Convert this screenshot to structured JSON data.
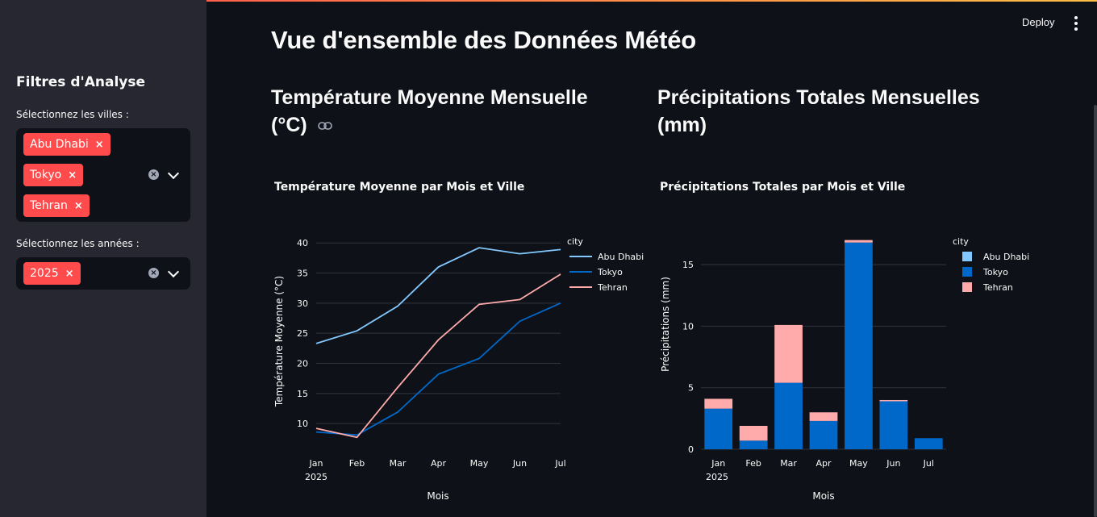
{
  "sidebar": {
    "title": "Filtres d'Analyse",
    "cities_label": "Sélectionnez les villes :",
    "cities": [
      "Abu Dhabi",
      "Tokyo",
      "Tehran"
    ],
    "years_label": "Sélectionnez les années :",
    "years": [
      "2025"
    ],
    "remove_glyph": "×",
    "clear_glyph": "×"
  },
  "header": {
    "deploy_label": "Deploy"
  },
  "main": {
    "title": "Vue d'ensemble des Données Météo",
    "left_section_line1": "Température Moyenne Mensuelle",
    "left_section_line2": "(°C)",
    "right_section_line1": "Précipitations Totales Mensuelles",
    "right_section_line2": "(mm)"
  },
  "colors": {
    "Abu Dhabi": "#83c9ff",
    "Tokyo": "#0068c9",
    "Tehran": "#ffabab",
    "accent": "#ff4b4b"
  },
  "chart_data": [
    {
      "type": "line",
      "title": "Température Moyenne par Mois et Ville",
      "xlabel": "Mois",
      "ylabel": "Température Moyenne (°C)",
      "categories": [
        "Jan",
        "Feb",
        "Mar",
        "Apr",
        "May",
        "Jun",
        "Jul"
      ],
      "x_sublabel": "2025",
      "yticks": [
        10,
        15,
        20,
        25,
        30,
        35,
        40
      ],
      "ylim": [
        6,
        41.5
      ],
      "legend_title": "city",
      "legend_position": "top-right",
      "series": [
        {
          "name": "Abu Dhabi",
          "values": [
            23.3,
            25.4,
            29.5,
            36.0,
            39.2,
            38.2,
            38.9
          ]
        },
        {
          "name": "Tokyo",
          "values": [
            8.6,
            8.1,
            11.9,
            18.2,
            20.8,
            27.0,
            30.0
          ]
        },
        {
          "name": "Tehran",
          "values": [
            9.2,
            7.7,
            16.0,
            23.9,
            29.8,
            30.6,
            34.8
          ]
        }
      ]
    },
    {
      "type": "bar",
      "stacked": true,
      "title": "Précipitations Totales par Mois et Ville",
      "xlabel": "Mois",
      "ylabel": "Précipitations (mm)",
      "categories": [
        "Jan",
        "Feb",
        "Mar",
        "Apr",
        "May",
        "Jun",
        "Jul"
      ],
      "x_sublabel": "2025",
      "yticks": [
        0,
        5,
        10,
        15
      ],
      "ylim": [
        0,
        17.5
      ],
      "legend_title": "city",
      "legend_position": "top-right",
      "series": [
        {
          "name": "Abu Dhabi",
          "values": [
            0,
            0,
            0,
            0,
            0,
            0,
            0
          ]
        },
        {
          "name": "Tokyo",
          "values": [
            3.3,
            0.7,
            5.4,
            2.3,
            16.8,
            3.9,
            0.9
          ]
        },
        {
          "name": "Tehran",
          "values": [
            0.8,
            1.2,
            4.7,
            0.7,
            0.2,
            0.1,
            0
          ]
        }
      ]
    }
  ]
}
